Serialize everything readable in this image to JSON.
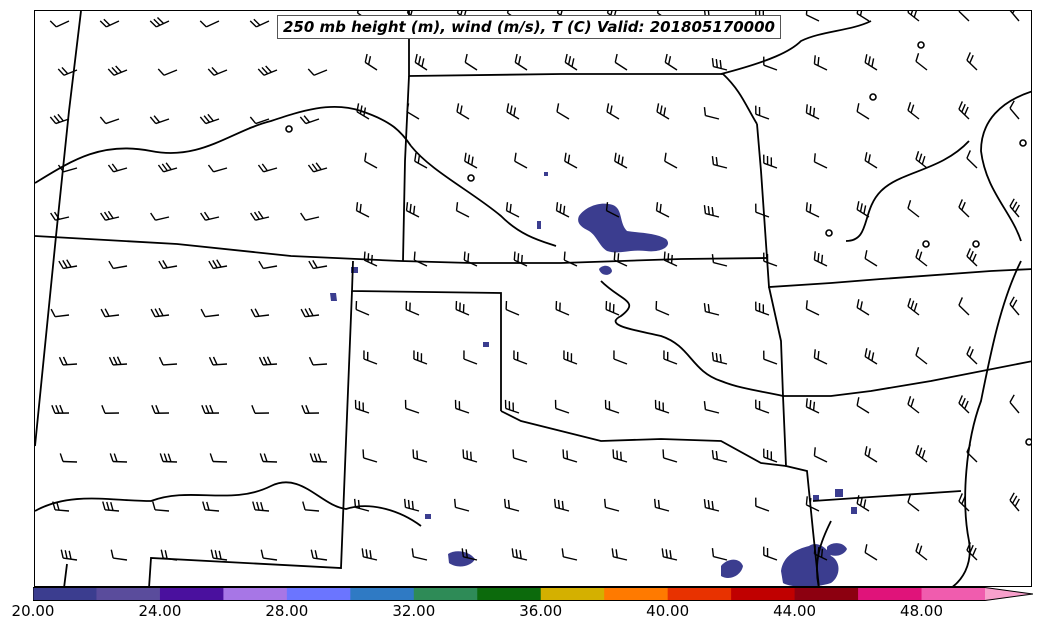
{
  "title": "250 mb height (m), wind (m/s), T (C) Valid: 201805170000",
  "colorbar": {
    "tick_labels": [
      "20.00",
      "24.00",
      "28.00",
      "32.00",
      "36.00",
      "40.00",
      "44.00",
      "48.00"
    ],
    "tick_values": [
      20,
      24,
      28,
      32,
      36,
      40,
      44,
      48
    ],
    "min": 20,
    "max": 52,
    "colors": [
      "#3b3d8f",
      "#5a4c9c",
      "#4a109e",
      "#a776e6",
      "#6b75ff",
      "#2f7ac4",
      "#2e8b57",
      "#0c6a0c",
      "#d4b000",
      "#ff7a00",
      "#e83200",
      "#c00000",
      "#8c0010",
      "#e0137a",
      "#f05cae",
      "#f8a0cc"
    ]
  },
  "map": {
    "barb_color": "#000000",
    "boundary_color": "#000000",
    "shading_color": "#3b3d8f"
  }
}
